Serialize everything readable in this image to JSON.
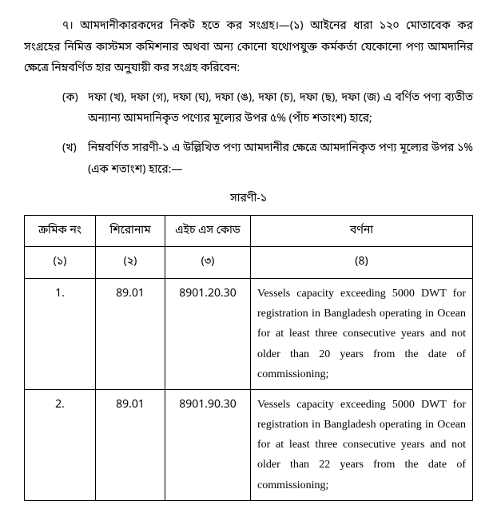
{
  "intro_text": "৭। আমদানীকারকদের নিকট হতে কর সংগ্রহ।—(১) আইনের ধারা ১২০ মোতাবেক কর সংগ্রহের নিমিত্ত কাস্টমস কমিশনার অথবা অন্য কোনো যথোপযুক্ত কর্মকর্তা যেকোনো পণ্য আমদানির ক্ষেত্রে নিম্নবর্ণিত হার অনুযায়ী কর সংগ্রহ করিবেন:",
  "clauses": [
    {
      "label": "(ক)",
      "text": "দফা (খ), দফা (গ), দফা (ঘ), দফা (ঙ), দফা (চ), দফা (ছ), দফা (জ) এ বর্ণিত পণ্য ব্যতীত অন্যান্য আমদানিকৃত পণ্যের মূল্যের উপর ৫% (পাঁচ শতাংশ) হারে;"
    },
    {
      "label": "(খ)",
      "text": "নিম্নবর্ণিত সারণী-১ এ উল্লিখিত পণ্য আমদানীর ক্ষেত্রে আমদানিকৃত পণ্য মূল্যের উপর ১% (এক শতাংশ) হারে:—"
    }
  ],
  "table_title": "সারণী-১",
  "table": {
    "headers": [
      "ক্রমিক নং",
      "শিরোনাম",
      "এইচ এস কোড",
      "বর্ণনা"
    ],
    "subheaders": [
      "(১)",
      "(২)",
      "(৩)",
      "(8)"
    ],
    "rows": [
      {
        "serial": "1.",
        "title": "89.01",
        "hs_code": "8901.20.30",
        "description": "Vessels capacity exceeding 5000 DWT for registration in Bangladesh operating in Ocean for at least three consecutive years and not older than 20 years from the date of commissioning;"
      },
      {
        "serial": "2.",
        "title": "89.01",
        "hs_code": "8901.90.30",
        "description": "Vessels capacity exceeding 5000 DWT for registration in Bangladesh operating in Ocean for at least three consecutive years and not older than 22 years from the date of commissioning;"
      }
    ]
  }
}
